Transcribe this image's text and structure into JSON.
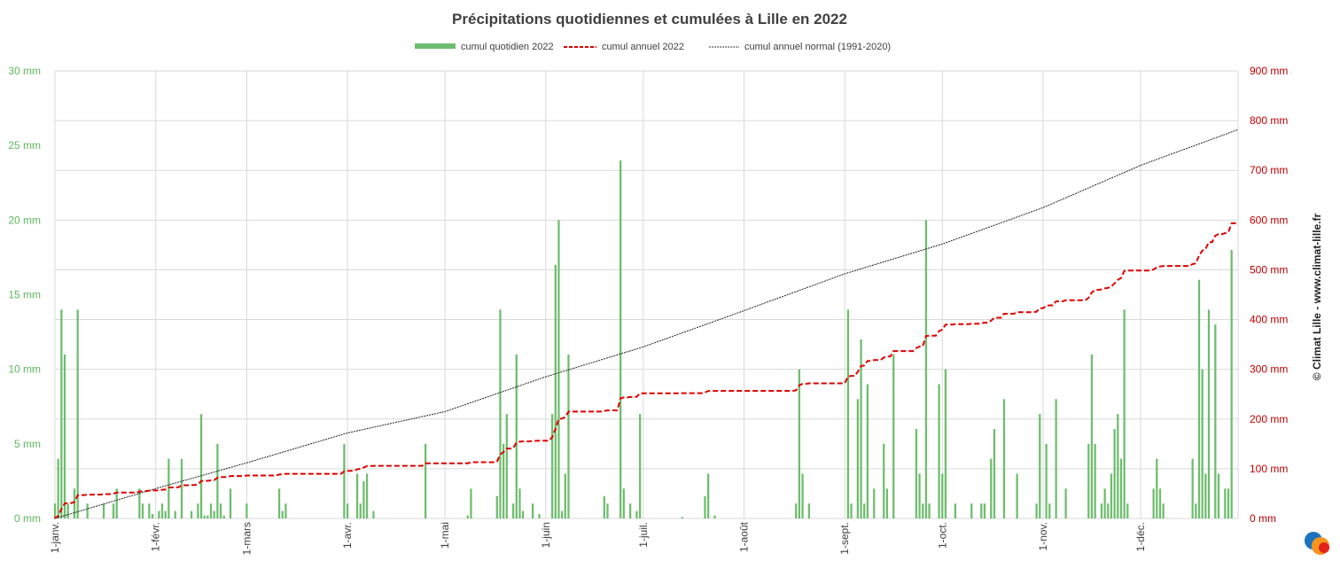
{
  "chart_data": {
    "type": "bar+line",
    "title": "Précipitations quotidiennes et cumulées à Lille en 2022",
    "legend": [
      {
        "name": "cumul quotidien 2022",
        "kind": "bar",
        "color": "#6ebd6e"
      },
      {
        "name": "cumul annuel 2022",
        "kind": "dashed-line",
        "color": "#e00000"
      },
      {
        "name": "cumul annuel normal (1991-2020)",
        "kind": "dotted-line",
        "color": "#333333"
      }
    ],
    "legend_position": "top-center",
    "grid": true,
    "y_left": {
      "unit": "mm",
      "ticks": [
        "0 mm",
        "5 mm",
        "10 mm",
        "15 mm",
        "20 mm",
        "25 mm",
        "30 mm"
      ],
      "ylim": [
        0,
        30
      ],
      "color": "#5fb860"
    },
    "y_right": {
      "unit": "mm",
      "ticks": [
        "0 mm",
        "100 mm",
        "200 mm",
        "300 mm",
        "400 mm",
        "500 mm",
        "600 mm",
        "700 mm",
        "800 mm",
        "900 mm"
      ],
      "ylim": [
        0,
        900
      ],
      "color": "#c00000"
    },
    "x_ticks": [
      {
        "label": "1-janv.",
        "day": 1
      },
      {
        "label": "1-févr.",
        "day": 32
      },
      {
        "label": "1-mars",
        "day": 60
      },
      {
        "label": "1-avr.",
        "day": 91
      },
      {
        "label": "1-mai",
        "day": 121
      },
      {
        "label": "1-juin",
        "day": 152
      },
      {
        "label": "1-juil.",
        "day": 182
      },
      {
        "label": "1-août",
        "day": 213
      },
      {
        "label": "1-sept.",
        "day": 244
      },
      {
        "label": "1-oct.",
        "day": 274
      },
      {
        "label": "1-nov.",
        "day": 305
      },
      {
        "label": "1-déc.",
        "day": 335
      }
    ],
    "x_range_days": [
      1,
      365
    ],
    "daily_2022": [
      {
        "day": 1,
        "mm": 1.0
      },
      {
        "day": 2,
        "mm": 4.0
      },
      {
        "day": 3,
        "mm": 14.0
      },
      {
        "day": 4,
        "mm": 11.0
      },
      {
        "day": 5,
        "mm": 1.0
      },
      {
        "day": 7,
        "mm": 2.0
      },
      {
        "day": 8,
        "mm": 14.0
      },
      {
        "day": 11,
        "mm": 1.0
      },
      {
        "day": 16,
        "mm": 1.0
      },
      {
        "day": 19,
        "mm": 1.0
      },
      {
        "day": 20,
        "mm": 2.0
      },
      {
        "day": 27,
        "mm": 2.0
      },
      {
        "day": 28,
        "mm": 1.0
      },
      {
        "day": 30,
        "mm": 1.0
      },
      {
        "day": 31,
        "mm": 0.3
      },
      {
        "day": 33,
        "mm": 0.5
      },
      {
        "day": 34,
        "mm": 1.0
      },
      {
        "day": 35,
        "mm": 0.5
      },
      {
        "day": 36,
        "mm": 4.0
      },
      {
        "day": 38,
        "mm": 0.5
      },
      {
        "day": 40,
        "mm": 4.0
      },
      {
        "day": 43,
        "mm": 0.5
      },
      {
        "day": 45,
        "mm": 1.0
      },
      {
        "day": 46,
        "mm": 7.0
      },
      {
        "day": 47,
        "mm": 0.2
      },
      {
        "day": 48,
        "mm": 0.2
      },
      {
        "day": 49,
        "mm": 1.0
      },
      {
        "day": 50,
        "mm": 0.5
      },
      {
        "day": 51,
        "mm": 5.0
      },
      {
        "day": 52,
        "mm": 1.0
      },
      {
        "day": 53,
        "mm": 0.2
      },
      {
        "day": 55,
        "mm": 2.0
      },
      {
        "day": 60,
        "mm": 1.0
      },
      {
        "day": 70,
        "mm": 2.0
      },
      {
        "day": 71,
        "mm": 0.5
      },
      {
        "day": 72,
        "mm": 1.0
      },
      {
        "day": 90,
        "mm": 5.0
      },
      {
        "day": 91,
        "mm": 1.0
      },
      {
        "day": 94,
        "mm": 3.0
      },
      {
        "day": 95,
        "mm": 1.0
      },
      {
        "day": 96,
        "mm": 2.5
      },
      {
        "day": 97,
        "mm": 3.0
      },
      {
        "day": 99,
        "mm": 0.5
      },
      {
        "day": 115,
        "mm": 5.0
      },
      {
        "day": 128,
        "mm": 0.2
      },
      {
        "day": 129,
        "mm": 2.0
      },
      {
        "day": 137,
        "mm": 1.5
      },
      {
        "day": 138,
        "mm": 14.0
      },
      {
        "day": 139,
        "mm": 5.0
      },
      {
        "day": 140,
        "mm": 7.0
      },
      {
        "day": 142,
        "mm": 1.0
      },
      {
        "day": 143,
        "mm": 11.0
      },
      {
        "day": 144,
        "mm": 2.0
      },
      {
        "day": 145,
        "mm": 0.5
      },
      {
        "day": 148,
        "mm": 1.0
      },
      {
        "day": 150,
        "mm": 0.3
      },
      {
        "day": 154,
        "mm": 7.0
      },
      {
        "day": 155,
        "mm": 17.0
      },
      {
        "day": 156,
        "mm": 20.0
      },
      {
        "day": 157,
        "mm": 0.5
      },
      {
        "day": 158,
        "mm": 3.0
      },
      {
        "day": 159,
        "mm": 11.0
      },
      {
        "day": 170,
        "mm": 1.5
      },
      {
        "day": 171,
        "mm": 1.0
      },
      {
        "day": 175,
        "mm": 24.0
      },
      {
        "day": 176,
        "mm": 2.0
      },
      {
        "day": 178,
        "mm": 1.0
      },
      {
        "day": 180,
        "mm": 0.5
      },
      {
        "day": 181,
        "mm": 7.0
      },
      {
        "day": 194,
        "mm": 0.1
      },
      {
        "day": 201,
        "mm": 1.5
      },
      {
        "day": 202,
        "mm": 3.0
      },
      {
        "day": 204,
        "mm": 0.2
      },
      {
        "day": 229,
        "mm": 1.0
      },
      {
        "day": 230,
        "mm": 10.0
      },
      {
        "day": 231,
        "mm": 3.0
      },
      {
        "day": 233,
        "mm": 1.0
      },
      {
        "day": 245,
        "mm": 14.0
      },
      {
        "day": 246,
        "mm": 1.0
      },
      {
        "day": 248,
        "mm": 8.0
      },
      {
        "day": 249,
        "mm": 12.0
      },
      {
        "day": 250,
        "mm": 1.0
      },
      {
        "day": 251,
        "mm": 9.0
      },
      {
        "day": 253,
        "mm": 2.0
      },
      {
        "day": 256,
        "mm": 5.0
      },
      {
        "day": 257,
        "mm": 2.0
      },
      {
        "day": 259,
        "mm": 11.0
      },
      {
        "day": 266,
        "mm": 6.0
      },
      {
        "day": 267,
        "mm": 3.0
      },
      {
        "day": 268,
        "mm": 1.0
      },
      {
        "day": 269,
        "mm": 20.0
      },
      {
        "day": 270,
        "mm": 1.0
      },
      {
        "day": 273,
        "mm": 9.0
      },
      {
        "day": 274,
        "mm": 3.0
      },
      {
        "day": 275,
        "mm": 10.0
      },
      {
        "day": 278,
        "mm": 1.0
      },
      {
        "day": 283,
        "mm": 1.0
      },
      {
        "day": 286,
        "mm": 1.0
      },
      {
        "day": 287,
        "mm": 1.0
      },
      {
        "day": 289,
        "mm": 4.0
      },
      {
        "day": 290,
        "mm": 6.0
      },
      {
        "day": 293,
        "mm": 8.0
      },
      {
        "day": 297,
        "mm": 3.0
      },
      {
        "day": 303,
        "mm": 1.0
      },
      {
        "day": 304,
        "mm": 7.0
      },
      {
        "day": 306,
        "mm": 5.0
      },
      {
        "day": 307,
        "mm": 1.0
      },
      {
        "day": 309,
        "mm": 8.0
      },
      {
        "day": 312,
        "mm": 2.0
      },
      {
        "day": 319,
        "mm": 5.0
      },
      {
        "day": 320,
        "mm": 11.0
      },
      {
        "day": 321,
        "mm": 5.0
      },
      {
        "day": 323,
        "mm": 1.0
      },
      {
        "day": 324,
        "mm": 2.0
      },
      {
        "day": 325,
        "mm": 1.0
      },
      {
        "day": 326,
        "mm": 3.0
      },
      {
        "day": 327,
        "mm": 6.0
      },
      {
        "day": 328,
        "mm": 7.0
      },
      {
        "day": 329,
        "mm": 4.0
      },
      {
        "day": 330,
        "mm": 14.0
      },
      {
        "day": 331,
        "mm": 1.0
      },
      {
        "day": 339,
        "mm": 2.0
      },
      {
        "day": 340,
        "mm": 4.0
      },
      {
        "day": 341,
        "mm": 2.0
      },
      {
        "day": 342,
        "mm": 1.0
      },
      {
        "day": 351,
        "mm": 4.0
      },
      {
        "day": 352,
        "mm": 1.0
      },
      {
        "day": 353,
        "mm": 16.0
      },
      {
        "day": 354,
        "mm": 10.0
      },
      {
        "day": 355,
        "mm": 3.0
      },
      {
        "day": 356,
        "mm": 14.0
      },
      {
        "day": 358,
        "mm": 13.0
      },
      {
        "day": 359,
        "mm": 3.0
      },
      {
        "day": 361,
        "mm": 2.0
      },
      {
        "day": 362,
        "mm": 2.0
      },
      {
        "day": 363,
        "mm": 18.0
      }
    ],
    "normal_cumulative": [
      {
        "day": 1,
        "mm": 0
      },
      {
        "day": 32,
        "mm": 60
      },
      {
        "day": 60,
        "mm": 112
      },
      {
        "day": 91,
        "mm": 172
      },
      {
        "day": 121,
        "mm": 215
      },
      {
        "day": 152,
        "mm": 285
      },
      {
        "day": 182,
        "mm": 345
      },
      {
        "day": 213,
        "mm": 418
      },
      {
        "day": 244,
        "mm": 492
      },
      {
        "day": 274,
        "mm": 552
      },
      {
        "day": 305,
        "mm": 625
      },
      {
        "day": 335,
        "mm": 710
      },
      {
        "day": 365,
        "mm": 782
      }
    ]
  },
  "credit": "© Climat Lille - www.climat-lille.fr",
  "logo": {
    "name": "climat-lille-logo",
    "colors": [
      "#1e73be",
      "#f7941d",
      "#e2231a"
    ]
  }
}
